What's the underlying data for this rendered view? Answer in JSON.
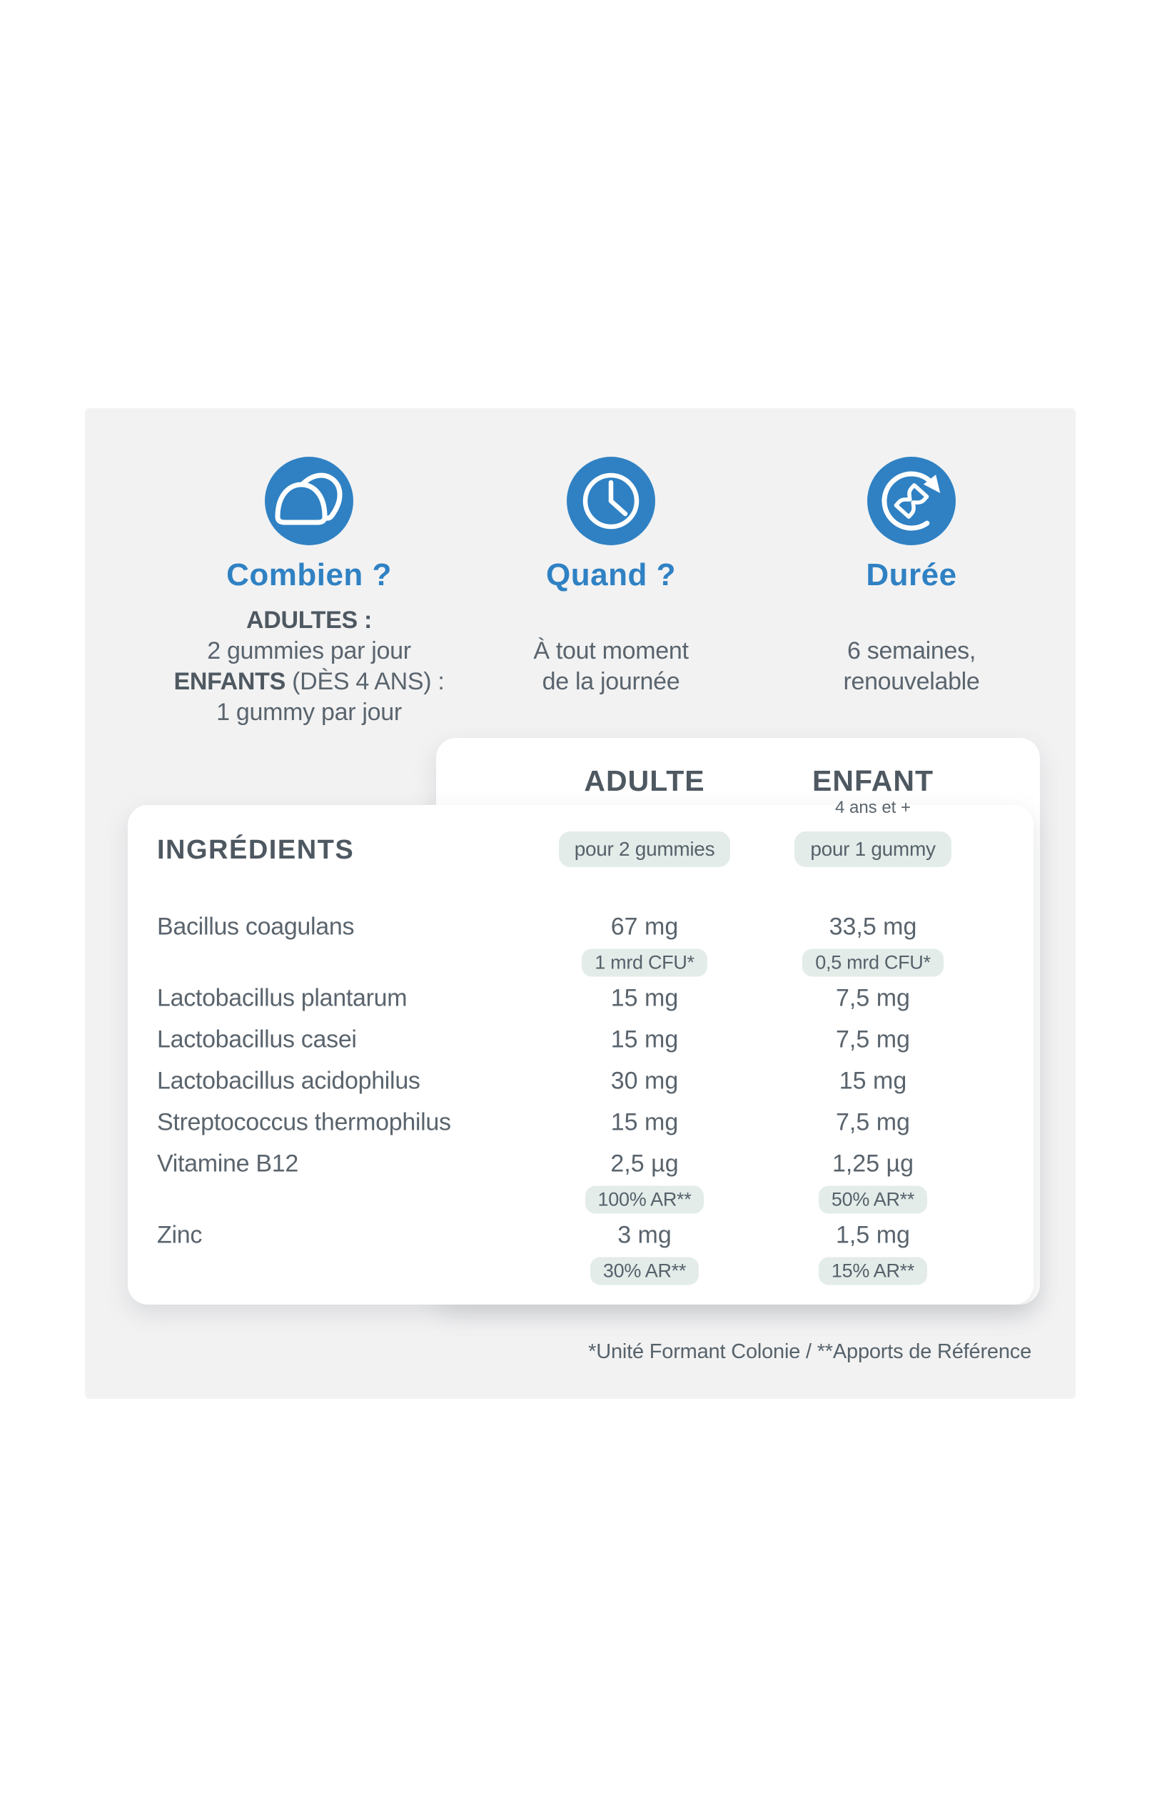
{
  "colors": {
    "accent_blue": "#2f81c3",
    "body_text": "#5a646d",
    "heading_text": "#4e5861",
    "pill_background": "#e3ece9",
    "panel_background": "#f2f2f3",
    "card_background": "#ffffff"
  },
  "features": [
    {
      "icon": "gummies-icon",
      "title": "Combien ?",
      "lines": [
        {
          "bold": "ADULTES :",
          "text": ""
        },
        {
          "bold": "",
          "text": "2 gummies par jour"
        },
        {
          "bold": "ENFANTS",
          "text": " (DÈS 4 ANS) :"
        },
        {
          "bold": "",
          "text": "1 gummy par jour"
        }
      ]
    },
    {
      "icon": "clock-icon",
      "title": "Quand ?",
      "lines": [
        {
          "bold": "",
          "text": "À tout moment"
        },
        {
          "bold": "",
          "text": "de la journée"
        }
      ]
    },
    {
      "icon": "renewal-icon",
      "title": "Durée",
      "lines": [
        {
          "bold": "",
          "text": "6 semaines,"
        },
        {
          "bold": "",
          "text": "renouvelable"
        }
      ]
    }
  ],
  "table": {
    "ingredients_label": "INGRÉDIENTS",
    "columns": [
      {
        "label": "ADULTE",
        "sub": "",
        "serving": "pour 2 gummies"
      },
      {
        "label": "ENFANT",
        "sub": "4 ans et +",
        "serving": "pour 1 gummy"
      }
    ],
    "rows": [
      {
        "name": "Bacillus coagulans",
        "adult": "67 mg",
        "child": "33,5 mg",
        "adult_badge": "1 mrd CFU*",
        "child_badge": "0,5 mrd CFU*"
      },
      {
        "name": "Lactobacillus plantarum",
        "adult": "15 mg",
        "child": "7,5 mg"
      },
      {
        "name": "Lactobacillus casei",
        "adult": "15 mg",
        "child": "7,5 mg"
      },
      {
        "name": "Lactobacillus acidophilus",
        "adult": "30 mg",
        "child": "15 mg"
      },
      {
        "name": "Streptococcus thermophilus",
        "adult": "15 mg",
        "child": "7,5 mg"
      },
      {
        "name": "Vitamine B12",
        "adult": "2,5 µg",
        "child": "1,25 µg",
        "adult_badge": "100% AR**",
        "child_badge": "50% AR**"
      },
      {
        "name": "Zinc",
        "adult": "3 mg",
        "child": "1,5 mg",
        "adult_badge": "30% AR**",
        "child_badge": "15% AR**"
      }
    ],
    "footnote": "*Unité Formant Colonie / **Apports de Référence"
  }
}
